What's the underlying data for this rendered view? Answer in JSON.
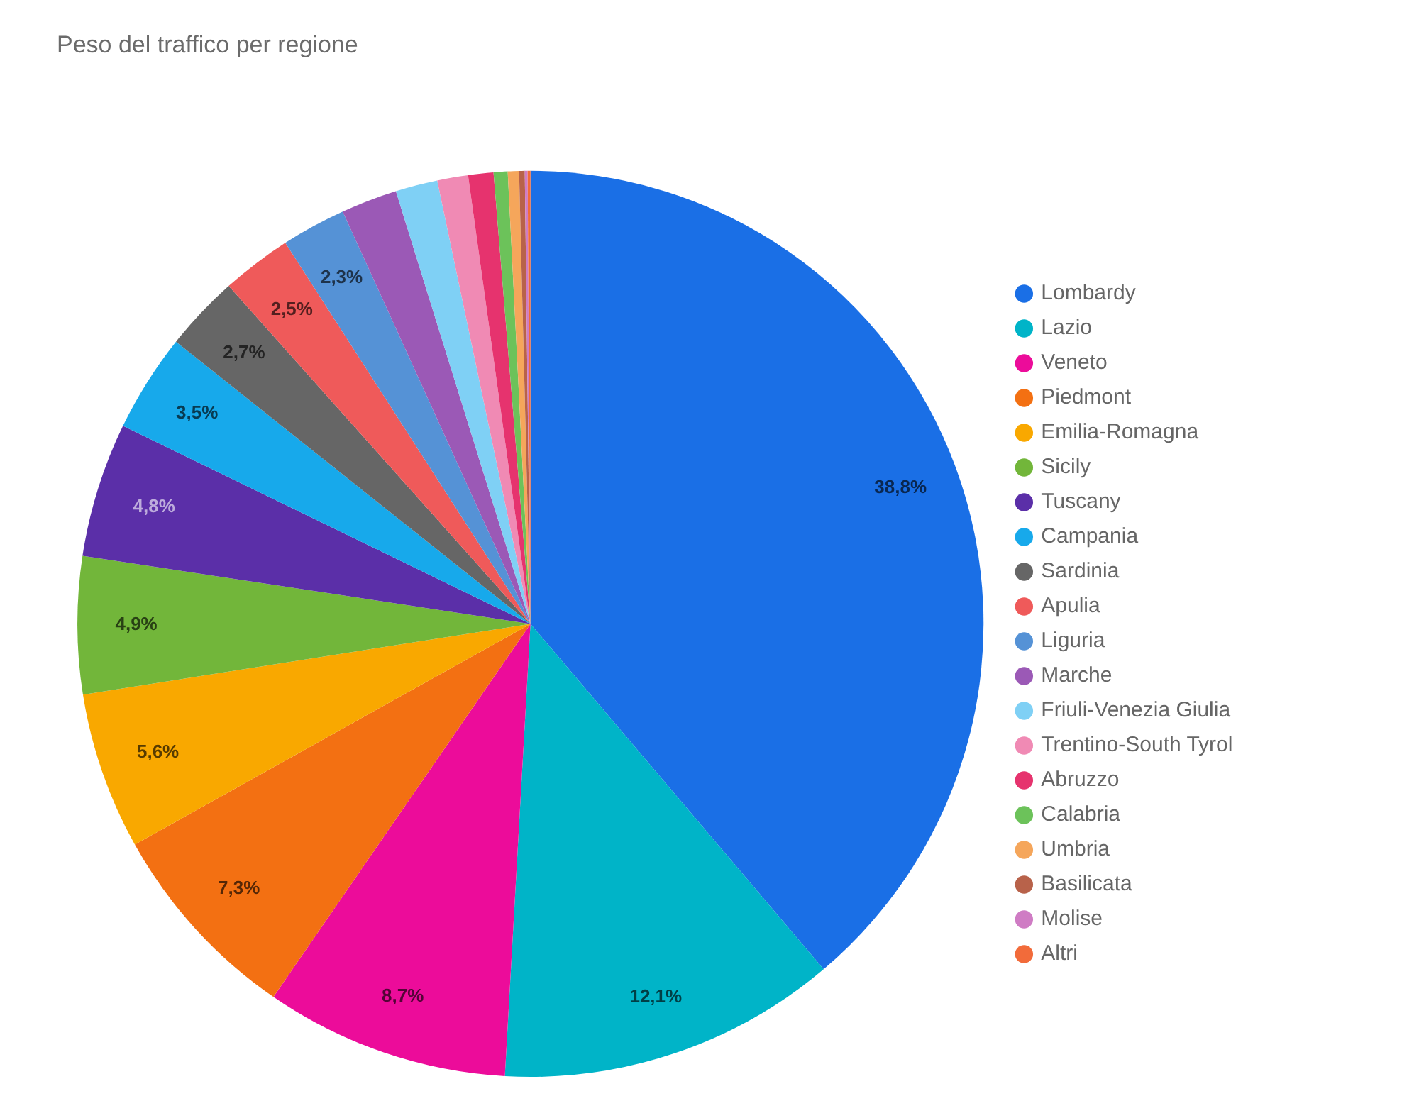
{
  "chart_data": {
    "type": "pie",
    "title": "Peso del traffico per regione",
    "categories": [
      "Lombardy",
      "Lazio",
      "Veneto",
      "Piedmont",
      "Emilia-Romagna",
      "Sicily",
      "Tuscany",
      "Campania",
      "Sardinia",
      "Apulia",
      "Liguria",
      "Marche",
      "Friuli-Venezia Giulia",
      "Trentino-South Tyrol",
      "Abruzzo",
      "Calabria",
      "Umbria",
      "Basilicata",
      "Molise",
      "Altri"
    ],
    "values": [
      38.8,
      12.1,
      8.7,
      7.3,
      5.6,
      4.9,
      4.8,
      3.5,
      2.7,
      2.5,
      2.3,
      2.0,
      1.5,
      1.1,
      0.9,
      0.5,
      0.4,
      0.2,
      0.1,
      0.1
    ],
    "colors": [
      "#1a6fe6",
      "#00b4c8",
      "#ec0c9a",
      "#f37012",
      "#f9a800",
      "#72b63a",
      "#5b2fa8",
      "#17a9eb",
      "#666666",
      "#ef5a5a",
      "#5592d6",
      "#9b59b6",
      "#7fd0f5",
      "#f08ab4",
      "#e6336e",
      "#6cc25a",
      "#f5a65b",
      "#b8624a",
      "#cf7cc4",
      "#f26b3a"
    ],
    "value_labels": [
      "38,8%",
      "12,1%",
      "8,7%",
      "7,3%",
      "5,6%",
      "4,9%",
      "4,8%",
      "3,5%",
      "2,7%",
      "2,5%",
      "2,3%",
      null,
      null,
      null,
      null,
      null,
      null,
      null,
      null,
      null
    ],
    "legend": "right"
  }
}
